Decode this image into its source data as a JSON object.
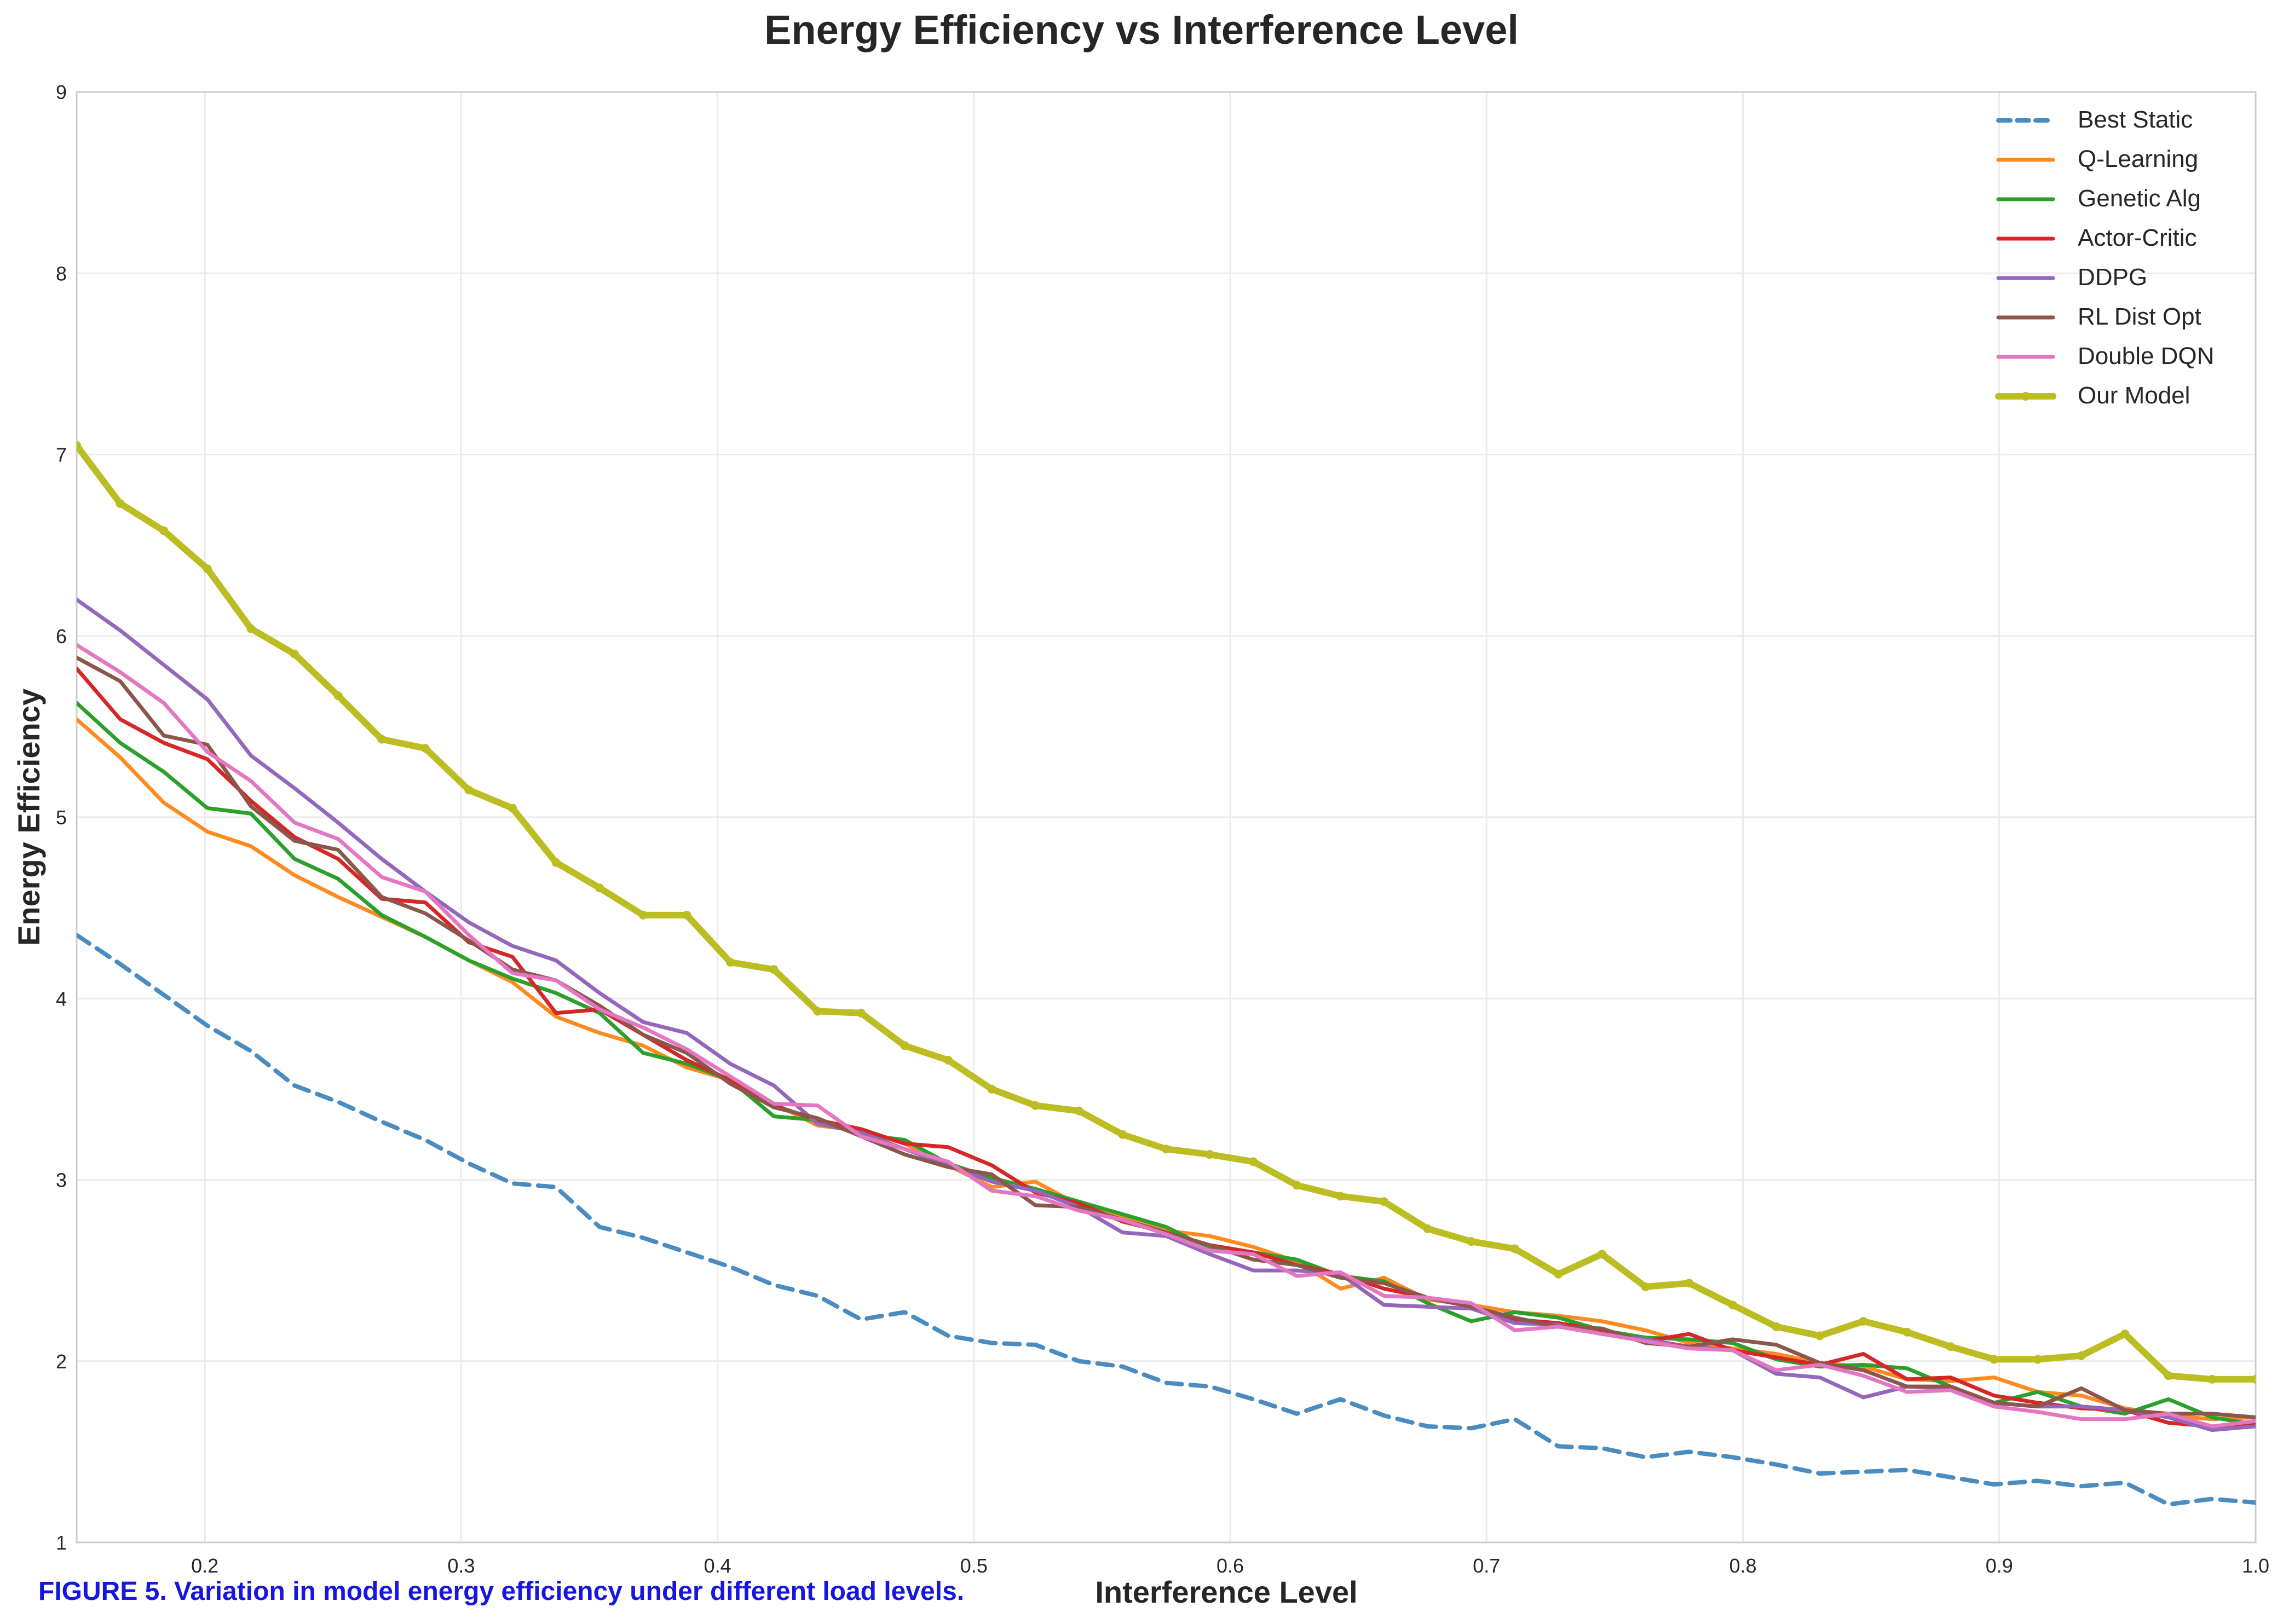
{
  "chart_data": {
    "type": "line",
    "title": "Energy Efficiency vs Interference Level",
    "xlabel": "Interference Level",
    "ylabel": "Energy Efficiency",
    "xlim": [
      0.15,
      1.0
    ],
    "ylim": [
      1,
      9
    ],
    "x_ticks": [
      "0.2",
      "0.3",
      "0.4",
      "0.5",
      "0.6",
      "0.7",
      "0.8",
      "0.9",
      "1.0"
    ],
    "y_ticks": [
      "1",
      "2",
      "3",
      "4",
      "5",
      "6",
      "7",
      "8",
      "9"
    ],
    "grid": true,
    "legend_position": "top-right",
    "x": [
      0.15,
      0.167,
      0.184,
      0.201,
      0.218,
      0.235,
      0.252,
      0.269,
      0.286,
      0.303,
      0.32,
      0.337,
      0.354,
      0.371,
      0.388,
      0.405,
      0.422,
      0.439,
      0.456,
      0.473,
      0.49,
      0.507,
      0.524,
      0.541,
      0.558,
      0.575,
      0.592,
      0.609,
      0.626,
      0.643,
      0.66,
      0.677,
      0.694,
      0.711,
      0.728,
      0.745,
      0.762,
      0.779,
      0.796,
      0.813,
      0.83,
      0.847,
      0.864,
      0.881,
      0.898,
      0.915,
      0.932,
      0.949,
      0.966,
      0.983,
      1.0
    ],
    "series": [
      {
        "name": "Best Static",
        "color": "#4a8cc0",
        "dash": true,
        "width": 8,
        "markers": false,
        "values": [
          4.35,
          4.19,
          4.02,
          3.85,
          3.71,
          3.52,
          3.43,
          3.32,
          3.22,
          3.09,
          2.98,
          2.96,
          2.74,
          2.68,
          2.6,
          2.52,
          2.42,
          2.36,
          2.23,
          2.27,
          2.14,
          2.1,
          2.09,
          2.0,
          1.97,
          1.88,
          1.86,
          1.79,
          1.71,
          1.79,
          1.7,
          1.64,
          1.63,
          1.68,
          1.53,
          1.52,
          1.47,
          1.5,
          1.47,
          1.43,
          1.38,
          1.39,
          1.4,
          1.36,
          1.32,
          1.34,
          1.31,
          1.33,
          1.21,
          1.24,
          1.22
        ]
      },
      {
        "name": "Q-Learning",
        "color": "#ff8a1f",
        "dash": false,
        "width": 7,
        "markers": false,
        "values": [
          5.54,
          5.33,
          5.08,
          4.92,
          4.84,
          4.68,
          4.56,
          4.45,
          4.34,
          4.21,
          4.09,
          3.9,
          3.81,
          3.74,
          3.62,
          3.55,
          3.42,
          3.3,
          3.27,
          3.2,
          3.08,
          2.96,
          2.99,
          2.86,
          2.79,
          2.72,
          2.69,
          2.63,
          2.55,
          2.4,
          2.46,
          2.34,
          2.31,
          2.27,
          2.25,
          2.22,
          2.17,
          2.1,
          2.07,
          2.04,
          1.99,
          1.97,
          1.9,
          1.89,
          1.91,
          1.83,
          1.81,
          1.74,
          1.7,
          1.68,
          1.69
        ]
      },
      {
        "name": "Genetic Alg",
        "color": "#2ca02c",
        "dash": false,
        "width": 7,
        "markers": false,
        "values": [
          5.63,
          5.41,
          5.25,
          5.05,
          5.02,
          4.77,
          4.66,
          4.46,
          4.34,
          4.21,
          4.11,
          4.03,
          3.92,
          3.7,
          3.64,
          3.55,
          3.35,
          3.33,
          3.25,
          3.22,
          3.09,
          3.01,
          2.95,
          2.88,
          2.81,
          2.74,
          2.62,
          2.6,
          2.56,
          2.47,
          2.44,
          2.32,
          2.22,
          2.27,
          2.24,
          2.17,
          2.13,
          2.12,
          2.1,
          2.01,
          1.97,
          1.98,
          1.96,
          1.86,
          1.77,
          1.83,
          1.75,
          1.71,
          1.79,
          1.69,
          1.65
        ]
      },
      {
        "name": "Actor-Critic",
        "color": "#d62728",
        "dash": false,
        "width": 7,
        "markers": false,
        "values": [
          5.82,
          5.54,
          5.41,
          5.32,
          5.09,
          4.89,
          4.77,
          4.55,
          4.53,
          4.31,
          4.23,
          3.92,
          3.94,
          3.8,
          3.66,
          3.55,
          3.41,
          3.33,
          3.28,
          3.2,
          3.18,
          3.08,
          2.93,
          2.87,
          2.77,
          2.71,
          2.64,
          2.6,
          2.53,
          2.48,
          2.4,
          2.35,
          2.3,
          2.23,
          2.21,
          2.17,
          2.11,
          2.15,
          2.06,
          2.02,
          1.98,
          2.04,
          1.9,
          1.91,
          1.81,
          1.77,
          1.74,
          1.73,
          1.66,
          1.64,
          1.66
        ]
      },
      {
        "name": "DDPG",
        "color": "#9467bd",
        "dash": false,
        "width": 7,
        "markers": false,
        "values": [
          6.2,
          6.03,
          5.84,
          5.65,
          5.34,
          5.16,
          4.97,
          4.77,
          4.59,
          4.42,
          4.29,
          4.21,
          4.03,
          3.87,
          3.81,
          3.64,
          3.52,
          3.31,
          3.26,
          3.17,
          3.08,
          2.99,
          2.94,
          2.85,
          2.71,
          2.69,
          2.59,
          2.5,
          2.5,
          2.48,
          2.31,
          2.3,
          2.29,
          2.21,
          2.2,
          2.15,
          2.12,
          2.08,
          2.06,
          1.93,
          1.91,
          1.8,
          1.86,
          1.85,
          1.77,
          1.75,
          1.75,
          1.73,
          1.69,
          1.62,
          1.64
        ]
      },
      {
        "name": "RL Dist Opt",
        "color": "#8c564b",
        "dash": false,
        "width": 7,
        "markers": false,
        "values": [
          5.88,
          5.75,
          5.45,
          5.4,
          5.06,
          4.87,
          4.82,
          4.56,
          4.47,
          4.32,
          4.16,
          4.1,
          3.96,
          3.8,
          3.7,
          3.53,
          3.4,
          3.34,
          3.24,
          3.14,
          3.07,
          3.03,
          2.86,
          2.85,
          2.78,
          2.71,
          2.64,
          2.56,
          2.53,
          2.46,
          2.43,
          2.35,
          2.3,
          2.24,
          2.19,
          2.18,
          2.1,
          2.08,
          2.12,
          2.09,
          1.99,
          1.95,
          1.86,
          1.86,
          1.77,
          1.75,
          1.85,
          1.73,
          1.71,
          1.71,
          1.69
        ]
      },
      {
        "name": "Double DQN",
        "color": "#e377c2",
        "dash": false,
        "width": 7,
        "markers": false,
        "values": [
          5.95,
          5.8,
          5.63,
          5.36,
          5.2,
          4.97,
          4.88,
          4.67,
          4.59,
          4.35,
          4.14,
          4.1,
          3.94,
          3.84,
          3.72,
          3.57,
          3.42,
          3.41,
          3.24,
          3.17,
          3.1,
          2.94,
          2.91,
          2.83,
          2.78,
          2.7,
          2.61,
          2.59,
          2.47,
          2.49,
          2.36,
          2.35,
          2.32,
          2.17,
          2.19,
          2.15,
          2.11,
          2.07,
          2.06,
          1.95,
          1.98,
          1.92,
          1.83,
          1.84,
          1.75,
          1.72,
          1.68,
          1.68,
          1.71,
          1.64,
          1.67
        ]
      },
      {
        "name": "Our Model",
        "color": "#bcbd22",
        "dash": false,
        "width": 12,
        "markers": true,
        "values": [
          7.05,
          6.73,
          6.58,
          6.37,
          6.04,
          5.9,
          5.67,
          5.43,
          5.38,
          5.15,
          5.05,
          4.75,
          4.61,
          4.46,
          4.46,
          4.2,
          4.16,
          3.93,
          3.92,
          3.74,
          3.66,
          3.5,
          3.41,
          3.38,
          3.25,
          3.17,
          3.14,
          3.1,
          2.97,
          2.91,
          2.88,
          2.73,
          2.66,
          2.62,
          2.48,
          2.59,
          2.41,
          2.43,
          2.31,
          2.19,
          2.14,
          2.22,
          2.16,
          2.08,
          2.01,
          2.01,
          2.03,
          2.15,
          1.92,
          1.9,
          1.9
        ]
      }
    ]
  },
  "caption": "FIGURE 5. Variation in model energy efficiency under different load levels."
}
